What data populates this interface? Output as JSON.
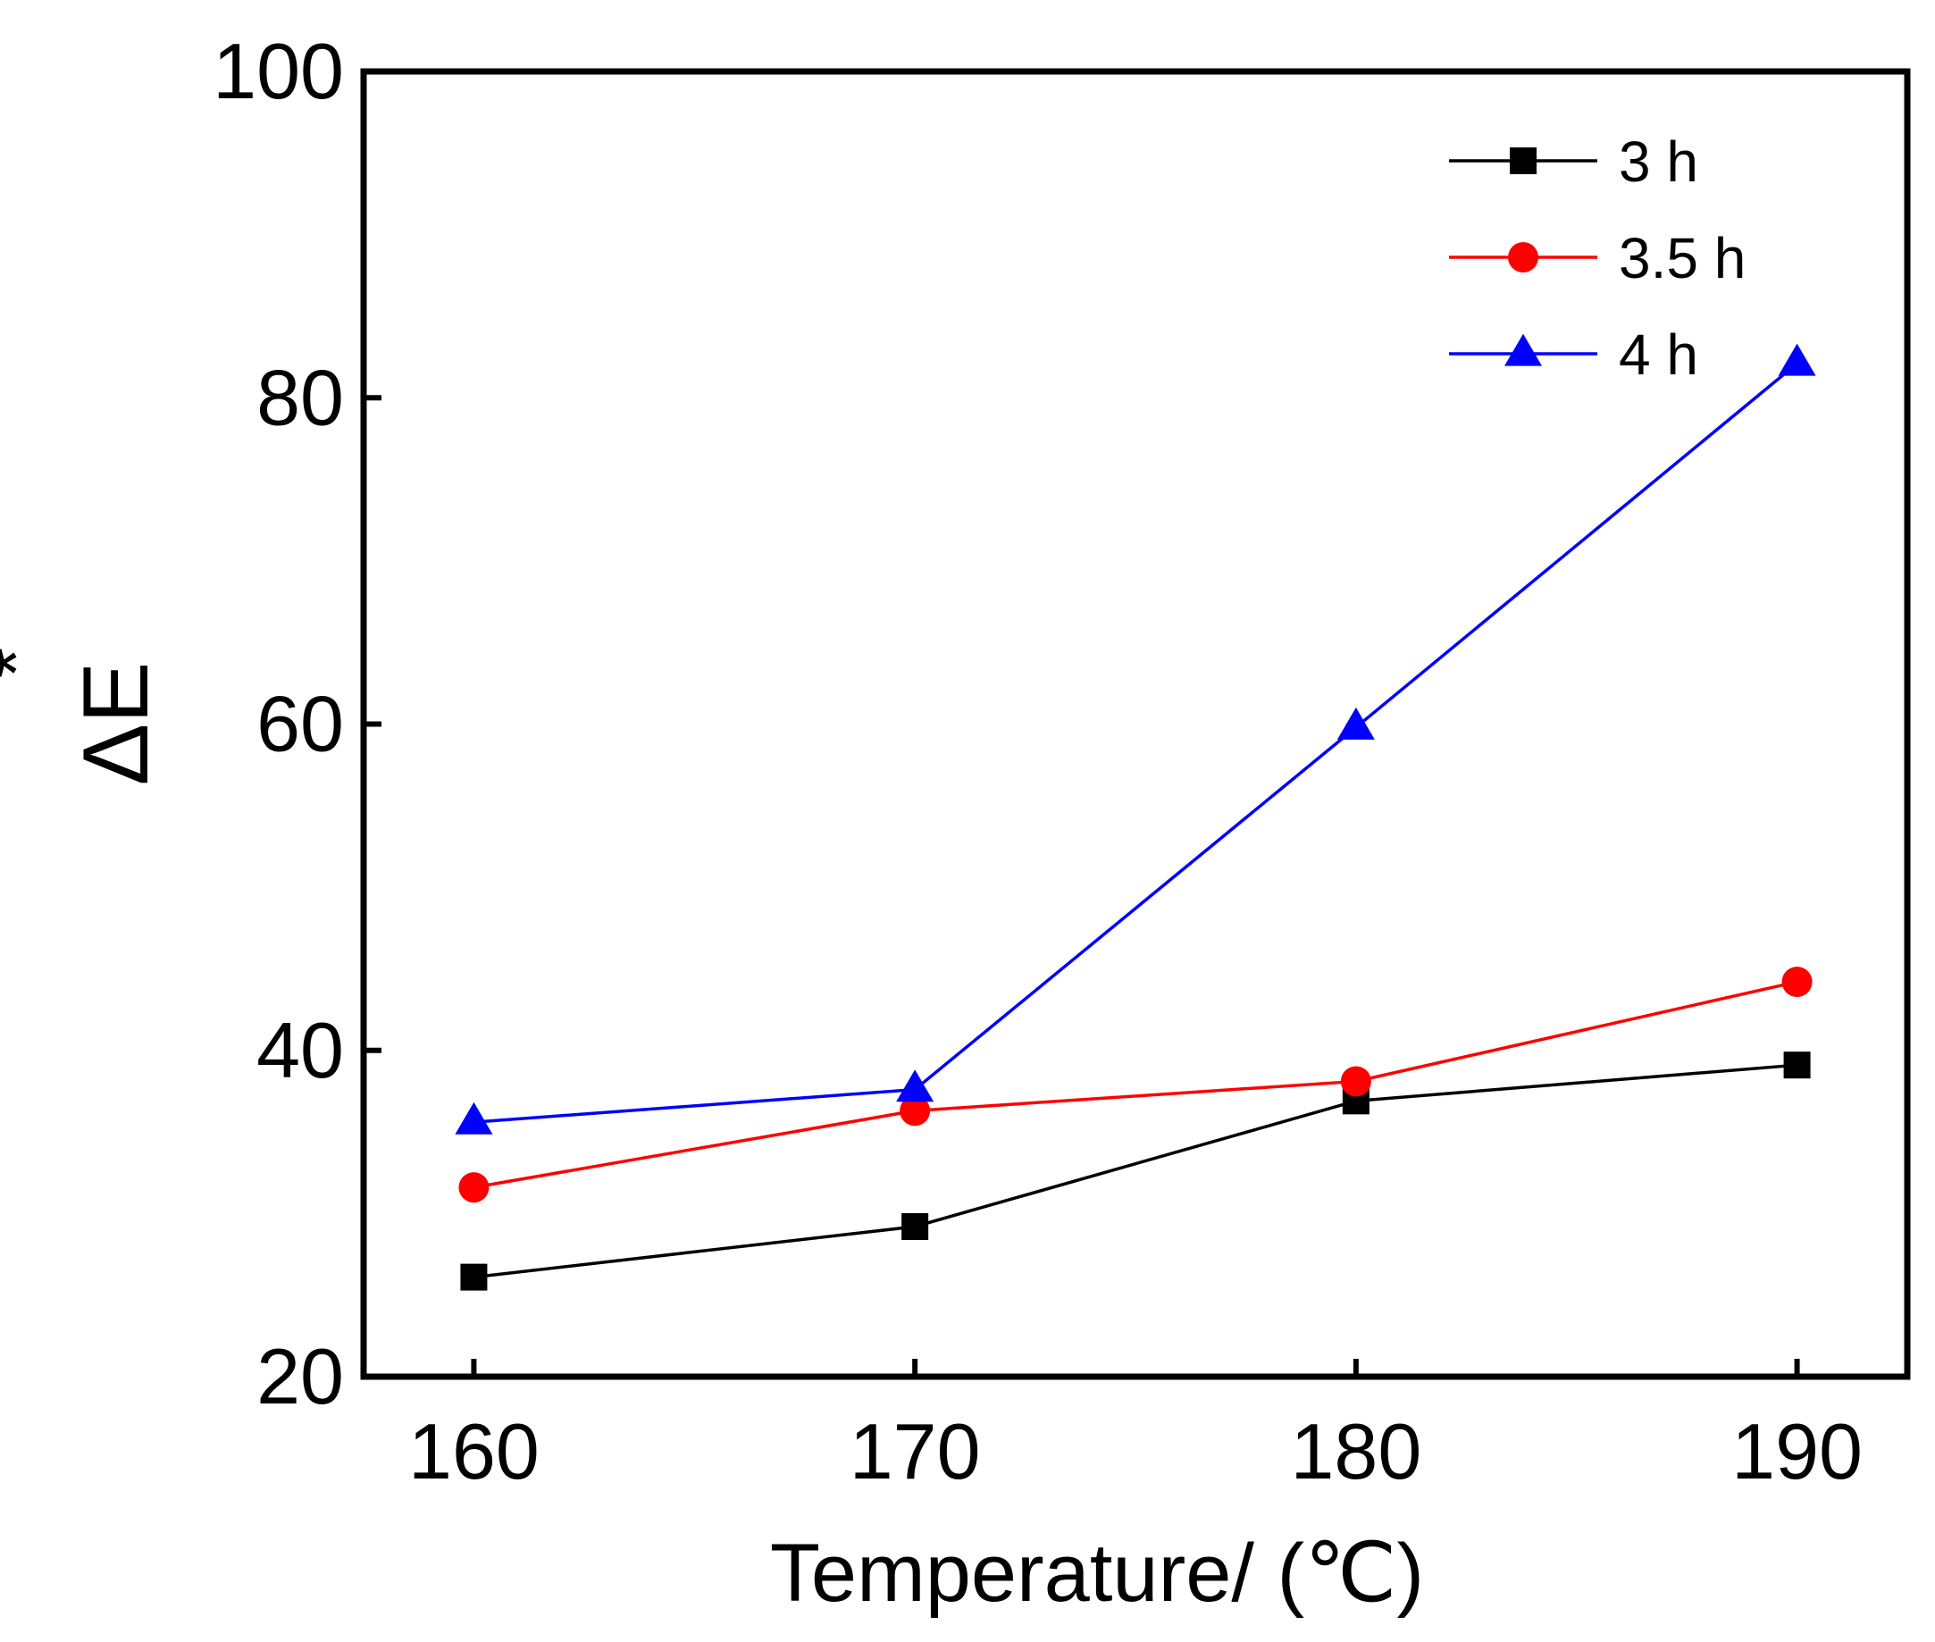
{
  "chart_data": {
    "type": "line",
    "title": "",
    "xlabel": "Temperature/ (℃)",
    "ylabel_main": "ΔE",
    "ylabel_superscript": "*",
    "x": [
      160,
      170,
      180,
      190
    ],
    "x_ticks": [
      "160",
      "170",
      "180",
      "190"
    ],
    "xlim": [
      157.5,
      192.5
    ],
    "ylim": [
      20,
      100
    ],
    "y_ticks": [
      "20",
      "40",
      "60",
      "80",
      "100"
    ],
    "grid": false,
    "legend_position": "top-right",
    "series": [
      {
        "name": "3 h",
        "color": "#000000",
        "marker": "square",
        "values": [
          26.1,
          29.2,
          36.9,
          39.1
        ]
      },
      {
        "name": "3.5 h",
        "color": "#ff0000",
        "marker": "circle",
        "values": [
          31.6,
          36.3,
          38.1,
          44.2
        ]
      },
      {
        "name": "4 h",
        "color": "#0000ff",
        "marker": "triangle",
        "values": [
          35.6,
          37.6,
          59.8,
          82.1
        ]
      }
    ]
  }
}
